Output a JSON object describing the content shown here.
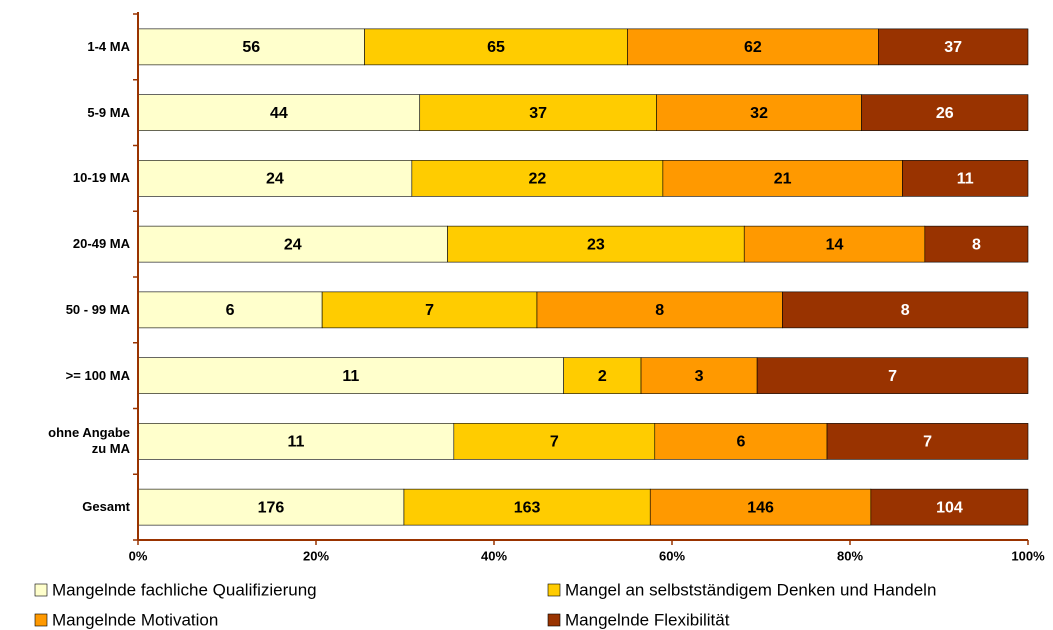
{
  "chart_data": {
    "type": "bar",
    "orientation": "horizontal",
    "stacking": "percent",
    "categories": [
      "1-4 MA",
      "5-9 MA",
      "10-19 MA",
      "20-49 MA",
      "50 - 99 MA",
      ">= 100 MA",
      "ohne Angabe\nzu MA",
      "Gesamt"
    ],
    "series": [
      {
        "name": "Mangelnde fachliche Qualifizierung",
        "color": "#ffffcc",
        "label_color": "#000000",
        "values": [
          56,
          44,
          24,
          24,
          6,
          11,
          11,
          176
        ]
      },
      {
        "name": "Mangel an selbstständigem Denken und Handeln",
        "color": "#ffcc00",
        "label_color": "#000000",
        "values": [
          65,
          37,
          22,
          23,
          7,
          2,
          7,
          163
        ]
      },
      {
        "name": "Mangelnde Motivation",
        "color": "#ff9900",
        "label_color": "#000000",
        "values": [
          62,
          32,
          21,
          14,
          8,
          3,
          6,
          146
        ]
      },
      {
        "name": "Mangelnde Flexibilität",
        "color": "#993300",
        "label_color": "#ffffff",
        "values": [
          37,
          26,
          11,
          8,
          8,
          7,
          7,
          104
        ]
      }
    ],
    "xlim": [
      0,
      100
    ],
    "xticks": [
      {
        "value": 0,
        "label": "0%"
      },
      {
        "value": 20,
        "label": "20%"
      },
      {
        "value": 40,
        "label": "40%"
      },
      {
        "value": 60,
        "label": "60%"
      },
      {
        "value": 80,
        "label": "80%"
      },
      {
        "value": 100,
        "label": "100%"
      }
    ],
    "axis_color": "#993300"
  }
}
